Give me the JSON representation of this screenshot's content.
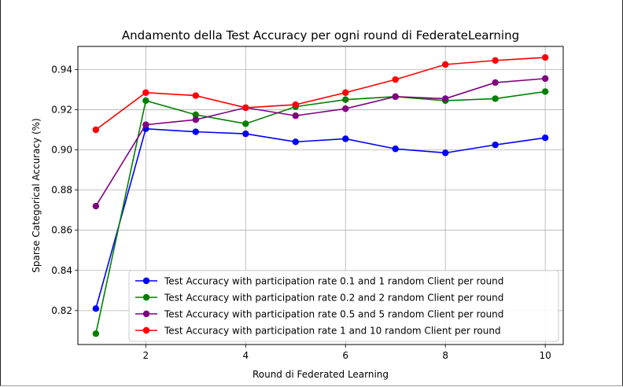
{
  "chart_data": {
    "type": "line",
    "title": "Andamento della Test Accuracy per ogni round di FederateLearning",
    "xlabel": "Round di Federated Learning",
    "ylabel": "Sparse Categorical Accuracy (%)",
    "xlim": [
      0.64,
      10.36
    ],
    "ylim": [
      0.8031,
      0.9515
    ],
    "xticks": [
      2,
      4,
      6,
      8,
      10
    ],
    "xtick_labels": [
      "2",
      "4",
      "6",
      "8",
      "10"
    ],
    "yticks": [
      0.82,
      0.84,
      0.86,
      0.88,
      0.9,
      0.92,
      0.94
    ],
    "ytick_labels": [
      "0.82",
      "0.84",
      "0.86",
      "0.88",
      "0.90",
      "0.92",
      "0.94"
    ],
    "grid": true,
    "legend_position": "lower-right",
    "x": [
      1,
      2,
      3,
      4,
      5,
      6,
      7,
      8,
      9,
      10
    ],
    "series": [
      {
        "name": "Test Accuracy with participation rate 0.1 and 1 random Client per round",
        "color": "#0000ff",
        "values": [
          0.821,
          0.9105,
          0.909,
          0.908,
          0.904,
          0.9055,
          0.9005,
          0.8985,
          0.9025,
          0.906
        ]
      },
      {
        "name": "Test Accuracy with participation rate 0.2 and 2 random Client per round",
        "color": "#008000",
        "values": [
          0.8085,
          0.9245,
          0.9175,
          0.913,
          0.9215,
          0.925,
          0.9265,
          0.9245,
          0.9255,
          0.929
        ]
      },
      {
        "name": "Test Accuracy with participation rate 0.5 and 5 random Client per round",
        "color": "#800080",
        "values": [
          0.872,
          0.9125,
          0.915,
          0.921,
          0.917,
          0.9205,
          0.9265,
          0.9255,
          0.9335,
          0.9355
        ]
      },
      {
        "name": "Test Accuracy with participation rate 1 and 10 random Client per round",
        "color": "#ff0000",
        "values": [
          0.91,
          0.9285,
          0.927,
          0.921,
          0.9225,
          0.9285,
          0.935,
          0.9425,
          0.9445,
          0.946
        ]
      }
    ]
  }
}
